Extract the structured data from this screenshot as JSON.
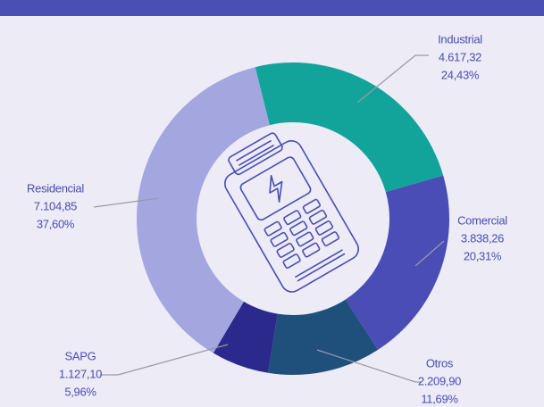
{
  "chart_data": {
    "type": "donut",
    "categories": [
      "Industrial",
      "Comercial",
      "Otros",
      "SAPG",
      "Residencial"
    ],
    "values": [
      4617.32,
      3838.26,
      2209.9,
      1127.1,
      7104.85
    ],
    "value_labels": [
      "4.617,32",
      "3.838,26",
      "2.209,90",
      "1.127,10",
      "7.104,85"
    ],
    "percent_values": [
      24.43,
      20.31,
      11.69,
      5.96,
      37.6
    ],
    "percent_labels": [
      "24,43%",
      "20,31%",
      "11,69%",
      "5,96%",
      "37,60%"
    ],
    "colors": [
      "#12a39a",
      "#4a4db5",
      "#1f4f7b",
      "#2b2a8c",
      "#a4a6e0"
    ]
  }
}
